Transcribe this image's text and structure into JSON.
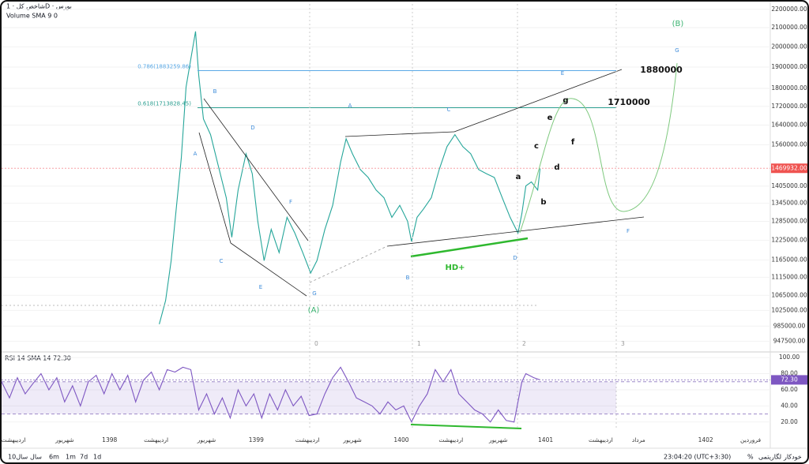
{
  "header": {
    "symbol": "شاخص کل · 1D · بورس",
    "indicator": "Volume SMA 9 0"
  },
  "chart_data": [
    {
      "type": "line",
      "name": "price",
      "log_scale": true,
      "color": "#26a69a",
      "x": [
        200,
        208,
        215,
        222,
        228,
        234,
        240,
        246,
        250,
        256,
        265,
        275,
        285,
        292,
        300,
        310,
        318,
        325,
        333,
        342,
        352,
        362,
        372,
        382,
        392,
        400,
        410,
        420,
        430,
        437,
        445,
        455,
        465,
        475,
        485,
        495,
        505,
        515,
        520,
        527,
        535,
        545,
        555,
        565,
        575,
        585,
        595,
        605,
        615,
        625,
        635,
        645,
        655,
        660,
        665,
        672,
        680,
        683
      ],
      "values": [
        990000,
        1051000,
        1162000,
        1338000,
        1509000,
        1806000,
        1939000,
        2080000,
        1862000,
        1666000,
        1601000,
        1478000,
        1364000,
        1234000,
        1391000,
        1525000,
        1450000,
        1285000,
        1163000,
        1259000,
        1187000,
        1298000,
        1247000,
        1187000,
        1127000,
        1163000,
        1259000,
        1338000,
        1493000,
        1584000,
        1525000,
        1465000,
        1436000,
        1391000,
        1364000,
        1298000,
        1338000,
        1285000,
        1221000,
        1298000,
        1325000,
        1364000,
        1465000,
        1553000,
        1601000,
        1553000,
        1525000,
        1465000,
        1450000,
        1436000,
        1364000,
        1298000,
        1247000,
        1311000,
        1406000,
        1420000,
        1391000,
        1469932
      ],
      "xlim": [
        0,
        975
      ],
      "ylim": [
        930000,
        2230000
      ],
      "xticks": [
        {
          "value": 15,
          "label": "اردیبهشت"
        },
        {
          "value": 80,
          "label": "شهریور"
        },
        {
          "value": 137,
          "label": "1398"
        },
        {
          "value": 196,
          "label": "اردیبهشت"
        },
        {
          "value": 260,
          "label": "شهریور"
        },
        {
          "value": 323,
          "label": "1399"
        },
        {
          "value": 388,
          "label": "اردیبهشت"
        },
        {
          "value": 445,
          "label": "شهریور"
        },
        {
          "value": 507,
          "label": "1400"
        },
        {
          "value": 570,
          "label": "اردیبهشت"
        },
        {
          "value": 630,
          "label": "شهریور"
        },
        {
          "value": 690,
          "label": "1401"
        },
        {
          "value": 760,
          "label": "اردیبهشت"
        },
        {
          "value": 808,
          "label": "مرداد"
        },
        {
          "value": 893,
          "label": "1402"
        },
        {
          "value": 950,
          "label": "فروردین"
        }
      ],
      "yticks": [
        {
          "value": 2200000,
          "label": "2200000.00"
        },
        {
          "value": 2100000,
          "label": "2100000.00"
        },
        {
          "value": 2000000,
          "label": "2000000.00"
        },
        {
          "value": 1900000,
          "label": "1900000.00"
        },
        {
          "value": 1800000,
          "label": "1800000.00"
        },
        {
          "value": 1720000,
          "label": "1720000.00"
        },
        {
          "value": 1640000,
          "label": "1640000.00"
        },
        {
          "value": 1560000,
          "label": "1560000.00"
        },
        {
          "value": 1405000,
          "label": "1405000.00"
        },
        {
          "value": 1345000,
          "label": "1345000.00"
        },
        {
          "value": 1285000,
          "label": "1285000.00"
        },
        {
          "value": 1225000,
          "label": "1225000.00"
        },
        {
          "value": 1165000,
          "label": "1165000.00"
        },
        {
          "value": 1115000,
          "label": "1115000.00"
        },
        {
          "value": 1065000,
          "label": "1065000.00"
        },
        {
          "value": 1025000,
          "label": "1025000.00"
        },
        {
          "value": 985000,
          "label": "985000.00"
        },
        {
          "value": 947500,
          "label": "947500.00"
        }
      ],
      "last_value": {
        "value": 1469932,
        "label": "1469932.00"
      },
      "levels": [
        {
          "value": 1883259.86,
          "label": "0.786(1883259.86)",
          "color": "#5aa9e6"
        },
        {
          "value": 1713828.45,
          "label": "0.618(1713828.45)",
          "color": "#2a9d8f"
        }
      ],
      "annotations": [
        "1880000",
        "1710000",
        "(B)",
        "(A)",
        "HD+"
      ],
      "wave_labels": [
        "A",
        "B",
        "C",
        "D",
        "E",
        "F",
        "G",
        "A",
        "C",
        "E",
        "G",
        "B",
        "D",
        "F",
        "a",
        "b",
        "c",
        "d",
        "e",
        "f",
        "g"
      ],
      "time_zones": [
        "0",
        "1",
        "2",
        "3"
      ]
    },
    {
      "type": "line",
      "name": "rsi",
      "title": "RSI 14 SMA 14 72.30",
      "color": "#7e57c2",
      "x": [
        0,
        10,
        20,
        30,
        40,
        50,
        60,
        70,
        80,
        90,
        100,
        110,
        120,
        130,
        140,
        150,
        160,
        170,
        180,
        190,
        200,
        210,
        220,
        230,
        240,
        250,
        260,
        270,
        280,
        290,
        300,
        310,
        320,
        330,
        340,
        350,
        360,
        370,
        380,
        390,
        400,
        410,
        420,
        430,
        440,
        450,
        460,
        470,
        480,
        490,
        500,
        510,
        520,
        530,
        540,
        550,
        560,
        570,
        580,
        590,
        600,
        610,
        620,
        630,
        640,
        650,
        660,
        665,
        675,
        683
      ],
      "values": [
        70,
        50,
        75,
        55,
        68,
        80,
        60,
        75,
        45,
        65,
        40,
        70,
        78,
        55,
        80,
        60,
        78,
        45,
        72,
        82,
        60,
        85,
        82,
        88,
        85,
        35,
        55,
        30,
        50,
        25,
        60,
        40,
        55,
        25,
        55,
        35,
        60,
        40,
        52,
        28,
        30,
        55,
        75,
        88,
        70,
        50,
        45,
        40,
        30,
        45,
        35,
        40,
        20,
        40,
        55,
        85,
        70,
        85,
        55,
        45,
        35,
        30,
        20,
        35,
        22,
        20,
        70,
        80,
        75,
        72.3
      ],
      "xlim": [
        0,
        975
      ],
      "ylim": [
        10,
        106
      ],
      "yticks": [
        {
          "value": 100,
          "label": "100.00"
        },
        {
          "value": 80,
          "label": "80.00"
        },
        {
          "value": 60,
          "label": "60.00"
        },
        {
          "value": 40,
          "label": "40.00"
        },
        {
          "value": 20,
          "label": "20.00"
        }
      ],
      "band": [
        30,
        70
      ],
      "last_value": {
        "value": 72.3,
        "label": "72.30"
      }
    }
  ],
  "footer": {
    "ranges": [
      "10سال",
      "سال",
      "6m",
      "1m",
      "7d",
      "1d"
    ],
    "time": "23:04:20 (UTC+3:30)",
    "percent": "%",
    "log": "لگاریتمی",
    "auto": "خودکار"
  }
}
